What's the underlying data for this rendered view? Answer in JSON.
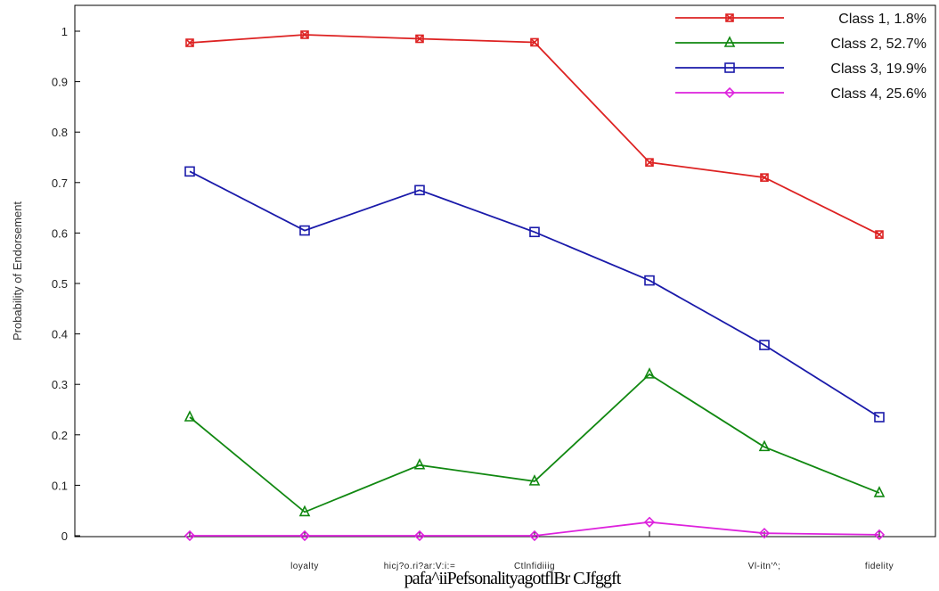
{
  "chart_data": {
    "type": "line",
    "title": "",
    "xlabel": "pafa^iiPefsonalityagotflBr CJfggft",
    "ylabel": "Probability of Endorsement",
    "ylim": [
      0,
      1
    ],
    "yticks": [
      "0",
      "0.1",
      "0.2",
      "0.3",
      "0.4",
      "0.5",
      "0.6",
      "0.7",
      "0.8",
      "0.9",
      "1"
    ],
    "categories": [
      "",
      "loyalty",
      "hicj?o.ri?ar:V:i:=",
      "Ctlnfidiiig",
      "",
      "Vl-itn'^;",
      "fidelity"
    ],
    "legend_position": "top-right",
    "grid": false,
    "series": [
      {
        "name": "Class 1, 1.8%",
        "color": "#dd2222",
        "marker": "x-square",
        "values": [
          0.977,
          0.993,
          0.985,
          0.978,
          0.74,
          0.71,
          0.597
        ]
      },
      {
        "name": "Class 2, 52.7%",
        "color": "#118811",
        "marker": "triangle",
        "values": [
          0.235,
          0.047,
          0.14,
          0.108,
          0.32,
          0.176,
          0.085
        ]
      },
      {
        "name": "Class 3, 19.9%",
        "color": "#1a1aaa",
        "marker": "square",
        "values": [
          0.722,
          0.605,
          0.685,
          0.602,
          0.506,
          0.378,
          0.235
        ]
      },
      {
        "name": "Class 4, 25.6%",
        "color": "#dd22dd",
        "marker": "diamond",
        "values": [
          0.0,
          0.0,
          0.0,
          0.0,
          0.027,
          0.005,
          0.002
        ]
      }
    ]
  }
}
